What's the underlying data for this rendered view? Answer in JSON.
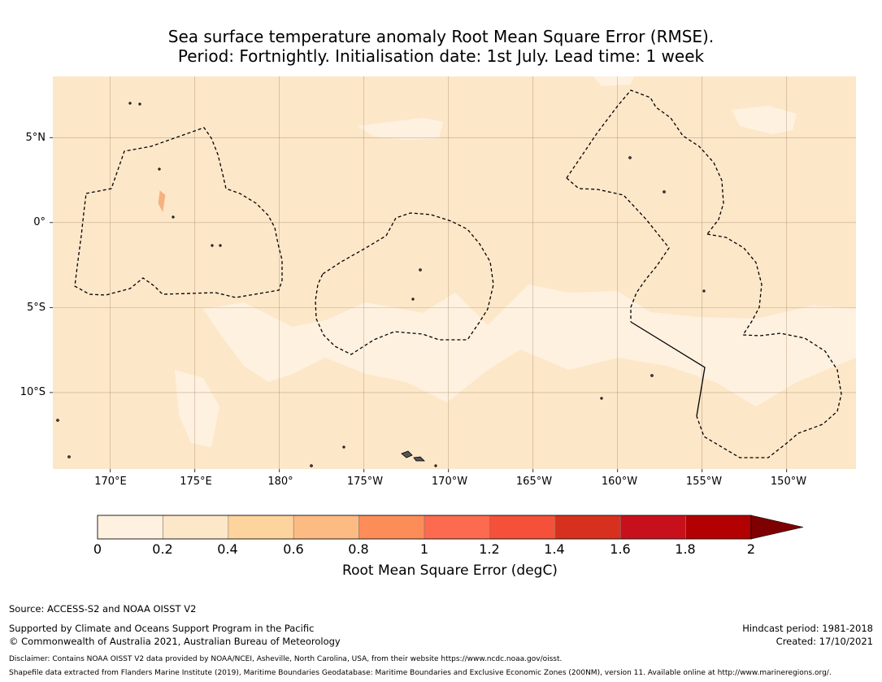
{
  "title": {
    "line1": "Sea surface temperature anomaly Root Mean Square Error (RMSE).",
    "line2": "Period: Fortnightly. Initialisation date: 1st July. Lead time: 1 week"
  },
  "map": {
    "lat_labels": [
      "5°N",
      "0°",
      "5°S",
      "10°S"
    ],
    "lat_values": [
      5,
      0,
      -5,
      -10
    ],
    "lon_labels": [
      "170°E",
      "175°E",
      "180°",
      "175°W",
      "170°W",
      "165°W",
      "160°W",
      "155°W",
      "150°W"
    ],
    "lon_values": [
      170,
      175,
      180,
      185,
      190,
      195,
      200,
      205,
      210
    ],
    "lon_range": [
      166.6,
      214.1
    ],
    "lat_range": [
      -14.5,
      8.6
    ],
    "background_color": "#fde7c9",
    "low_band_color": "#fff1e0",
    "grid": true
  },
  "colorbar": {
    "ticks": [
      "0",
      "0.2",
      "0.4",
      "0.6",
      "0.8",
      "1",
      "1.2",
      "1.4",
      "1.6",
      "1.8",
      "2"
    ],
    "colors": [
      "#fff1e0",
      "#fde7c9",
      "#fdd49e",
      "#fdbb84",
      "#fc8d59",
      "#fc6a4f",
      "#f4503a",
      "#d7301f",
      "#c8101c",
      "#b30000",
      "#7f0000"
    ],
    "label": "Root Mean Square Error (degC)"
  },
  "footer": {
    "source": "Source: ACCESS-S2 and NOAA OISST V2",
    "support": "Supported by Climate and Oceans Support Program in the Pacific",
    "copyright": "© Commonwealth of Australia 2021, Australian Bureau of Meteorology",
    "hindcast": "Hindcast period: 1981-2018",
    "created": "Created: 17/10/2021",
    "disclaimer": "Disclaimer: Contains NOAA OISST V2 data provided by NOAA/NCEI, Asheville, North Carolina, USA, from their website https://www.ncdc.noaa.gov/oisst.",
    "shapefile": "Shapefile data extracted from Flanders Marine Institute (2019), Maritime Boundaries Geodatabase: Maritime Boundaries and Exclusive Economic Zones (200NM), version 11. Available online at http://www.marineregions.org/."
  }
}
